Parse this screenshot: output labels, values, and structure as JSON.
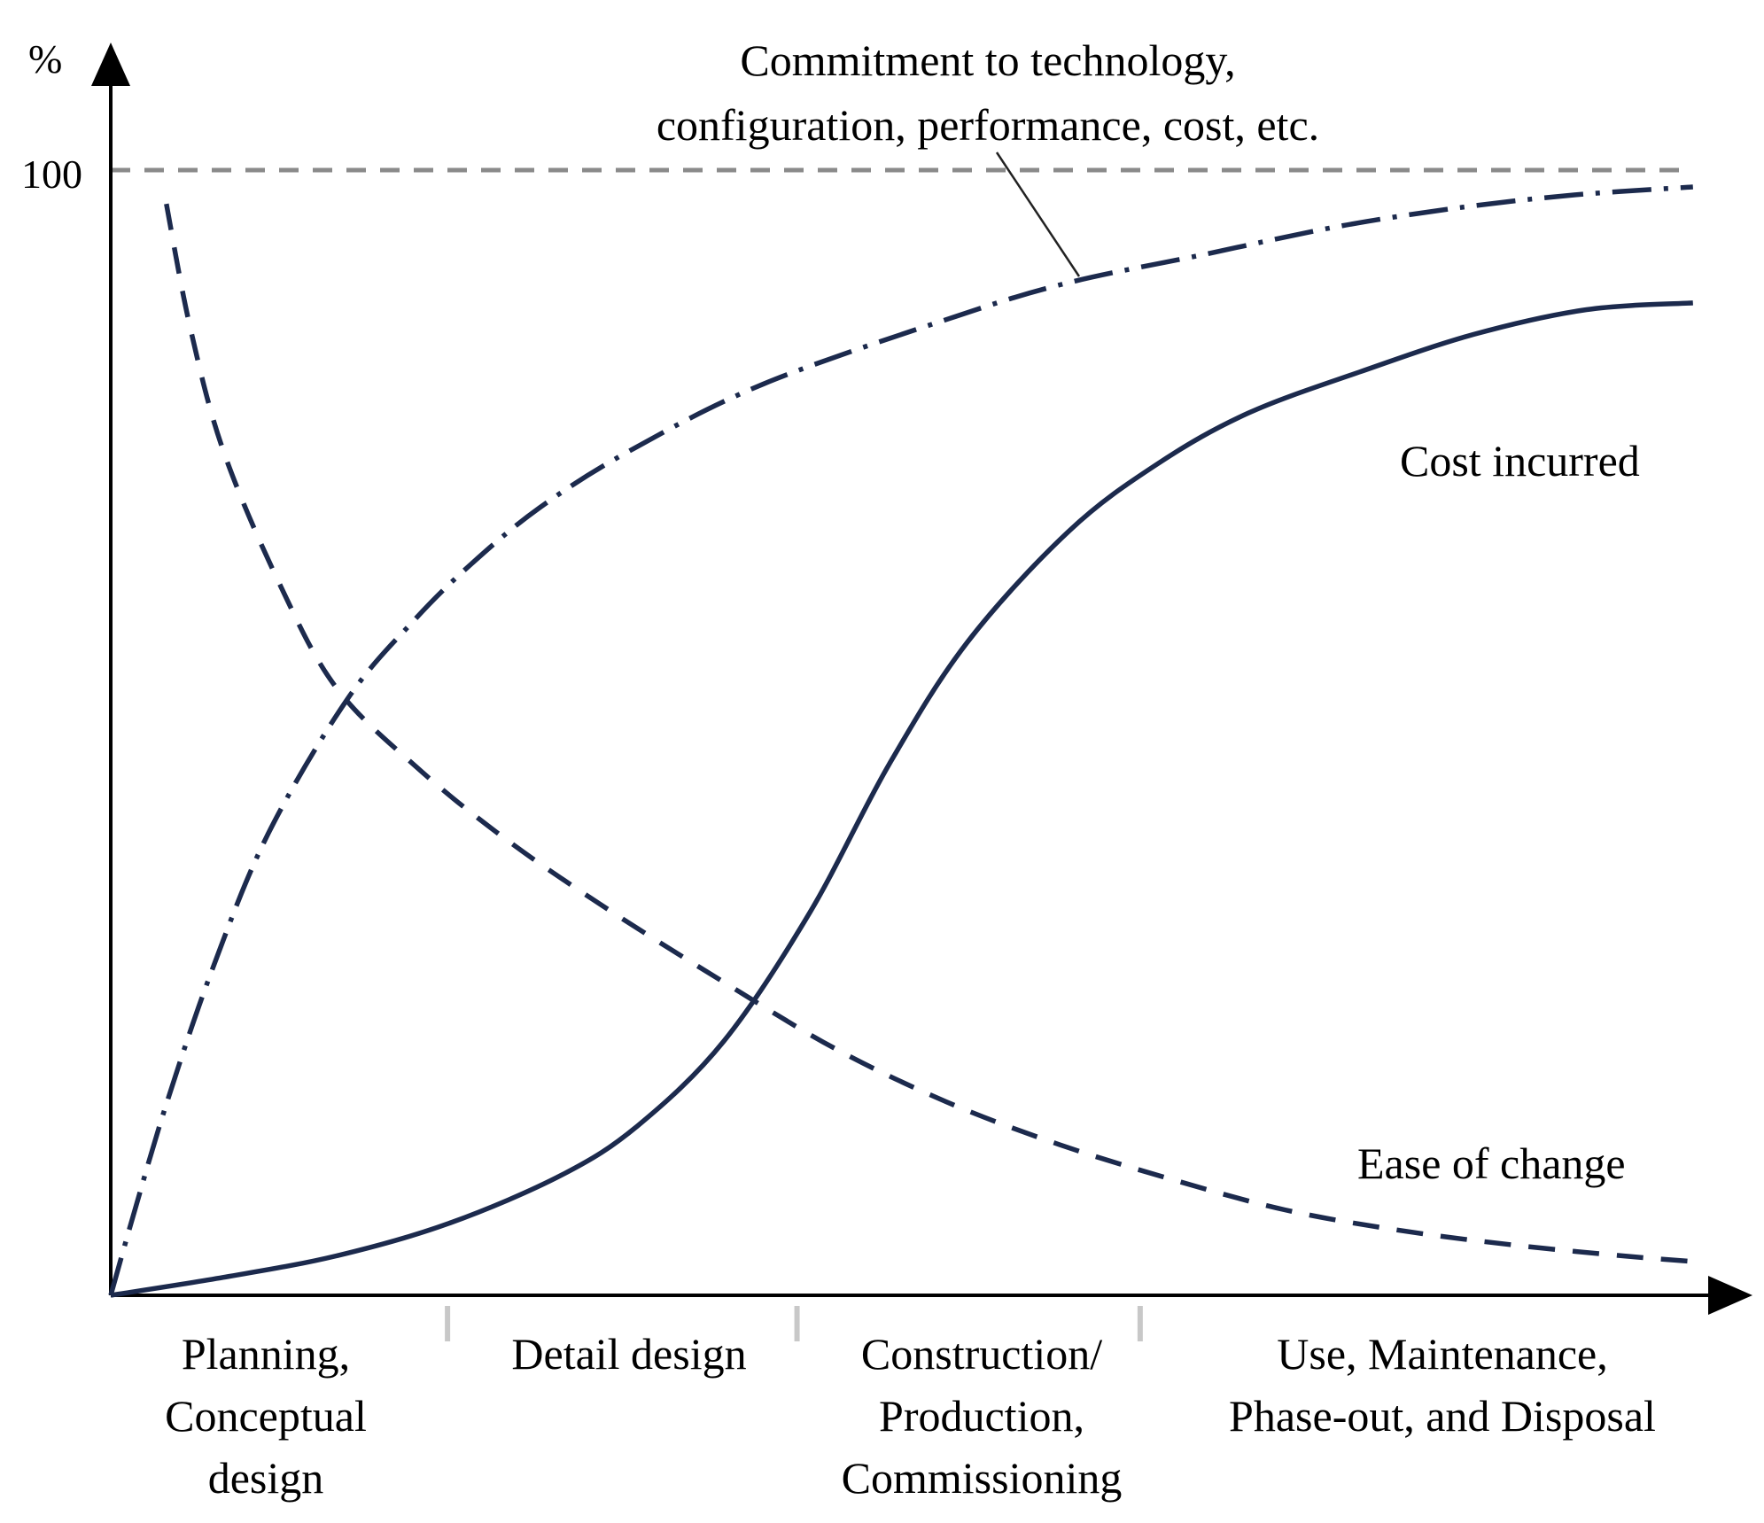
{
  "chart_data": {
    "type": "line",
    "title": "",
    "xlabel": "",
    "ylabel": "%",
    "y_reference": {
      "value": 100,
      "label": "100",
      "style": "dashed",
      "color": "#808080"
    },
    "x_range": [
      0,
      100
    ],
    "y_range": [
      0,
      100
    ],
    "phases": [
      {
        "label_lines": [
          "Planning,",
          "Conceptual",
          "design"
        ],
        "start": 0,
        "end": 21.2
      },
      {
        "label_lines": [
          "Detail design"
        ],
        "start": 21.2,
        "end": 43.2
      },
      {
        "label_lines": [
          "Construction/",
          "Production,",
          "Commissioning"
        ],
        "start": 43.2,
        "end": 64.8
      },
      {
        "label_lines": [
          "Use, Maintenance,",
          "Phase-out, and Disposal"
        ],
        "start": 64.8,
        "end": 100
      }
    ],
    "series": [
      {
        "name": "Commitment to technology, configuration, performance, cost, etc.",
        "name_lines": [
          "Commitment  to technology,",
          "configuration,  performance, cost, etc."
        ],
        "style": "dashdot",
        "color": "#1c2a4d",
        "x": [
          0,
          1.4,
          3.5,
          6.4,
          9.9,
          14.9,
          19.1,
          22.7,
          27.0,
          32.6,
          41.1,
          53.2,
          60.3,
          68.8,
          77.3,
          85.1,
          92.2,
          99.6
        ],
        "y": [
          0,
          7,
          17,
          29,
          41,
          53,
          60,
          65,
          70,
          75,
          81,
          87,
          90,
          92.5,
          95,
          96.7,
          97.8,
          98.5
        ]
      },
      {
        "name": "Cost incurred",
        "style": "solid",
        "color": "#1c2a4d",
        "x": [
          0,
          7.1,
          14.2,
          21.3,
          28.4,
          33.2,
          38.6,
          44.0,
          49.0,
          53.9,
          60.3,
          65.9,
          71.6,
          78.7,
          85.8,
          92.9,
          99.6
        ],
        "y": [
          0,
          1.6,
          3.5,
          6.4,
          10.7,
          15.1,
          22.6,
          34.0,
          47.2,
          58.0,
          67.9,
          73.9,
          78.4,
          82.1,
          85.4,
          87.6,
          88.2
        ]
      },
      {
        "name": "Ease of change",
        "style": "dashed",
        "color": "#1c2a4d",
        "x": [
          3.5,
          5.0,
          7.1,
          10.7,
          14.2,
          19.2,
          24.9,
          31.3,
          38.4,
          45.5,
          52.6,
          59.7,
          66.8,
          73.9,
          81.0,
          88.1,
          95.2,
          99.6
        ],
        "y": [
          97,
          86,
          75,
          63,
          54,
          47,
          40.5,
          34.3,
          28.0,
          22.0,
          17.2,
          13.4,
          10.3,
          7.6,
          5.8,
          4.5,
          3.5,
          3.0
        ]
      }
    ],
    "annotations": [
      {
        "text": "Cost incurred",
        "series": "Cost incurred"
      },
      {
        "text": "Ease of change",
        "series": "Ease of change"
      }
    ],
    "grid": false,
    "legend": "none (direct labels)"
  }
}
